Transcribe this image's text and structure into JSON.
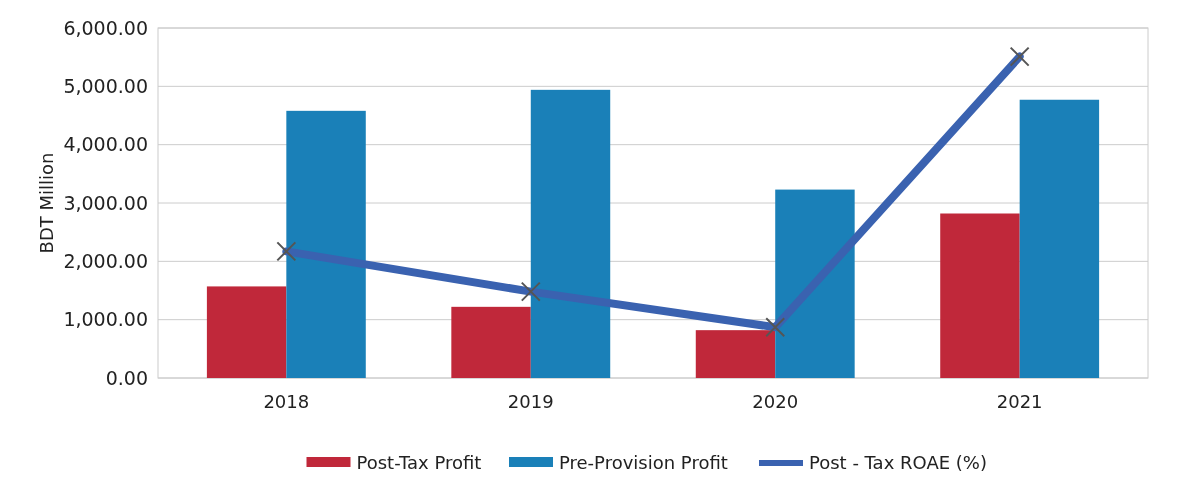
{
  "chart_data": {
    "type": "bar",
    "ylabel": "BDT Million",
    "categories": [
      "2018",
      "2019",
      "2020",
      "2021"
    ],
    "series": [
      {
        "name": "Post-Tax Profit",
        "color": "#c0283a",
        "values": [
          1570,
          1220,
          820,
          2820
        ]
      },
      {
        "name": "Pre-Provision Profit",
        "color": "#1a80b8",
        "values": [
          4580,
          4940,
          3230,
          4770
        ]
      },
      {
        "name": "Post - Tax ROAE (%)",
        "type": "line",
        "color": "#3a62b0",
        "values": [
          2170,
          1480,
          870,
          5510
        ],
        "marker": "cross"
      }
    ],
    "ylim": [
      0,
      6000
    ],
    "yticks": [
      {
        "value": 0,
        "label": "0.00"
      },
      {
        "value": 1000,
        "label": "1,000.00"
      },
      {
        "value": 2000,
        "label": "2,000.00"
      },
      {
        "value": 3000,
        "label": "3,000.00"
      },
      {
        "value": 4000,
        "label": "4,000.00"
      },
      {
        "value": 5000,
        "label": "5,000.00"
      },
      {
        "value": 6000,
        "label": "6,000.00"
      }
    ],
    "grid": "y",
    "legend": "bottom"
  }
}
